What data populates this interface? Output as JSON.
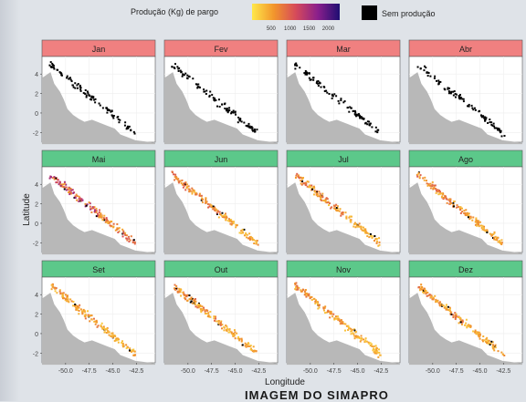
{
  "chart_data": {
    "type": "scatter",
    "layout": "small-multiples map grid",
    "legend": {
      "gradient_title": "Produção (Kg) de pargo",
      "gradient_ticks": [
        "500",
        "1000",
        "1500",
        "2000"
      ],
      "gradient_tick_values": [
        500,
        1000,
        1500,
        2000
      ],
      "gradient_colors": [
        "#ffe84a",
        "#f2952c",
        "#d64a5a",
        "#8a1f8c",
        "#1e0d72"
      ],
      "no_production_label": "Sem produção",
      "no_production_color": "#000000",
      "placement": "top"
    },
    "xlabel": "Longitude",
    "ylabel": "Latitude",
    "xlim": [
      -52.5,
      -40.5
    ],
    "ylim": [
      -3,
      5.8
    ],
    "x_ticks": [
      "-50.0",
      "-47.5",
      "-45.0",
      "-42.5"
    ],
    "x_tick_values": [
      -50.0,
      -47.5,
      -45.0,
      -42.5
    ],
    "y_ticks": [
      "4",
      "2",
      "0",
      "-2"
    ],
    "y_tick_values": [
      4,
      2,
      0,
      -2
    ],
    "strip_colors": {
      "no_production": "#f08080",
      "production": "#5cc88a"
    },
    "panels": [
      {
        "month": "Jan",
        "production": false,
        "mean_kg": 0,
        "no_prod_fraction": 1.0
      },
      {
        "month": "Fev",
        "production": false,
        "mean_kg": 0,
        "no_prod_fraction": 1.0
      },
      {
        "month": "Mar",
        "production": false,
        "mean_kg": 0,
        "no_prod_fraction": 1.0
      },
      {
        "month": "Abr",
        "production": false,
        "mean_kg": 0,
        "no_prod_fraction": 1.0
      },
      {
        "month": "Mai",
        "production": true,
        "mean_kg": 1100,
        "no_prod_fraction": 0.06
      },
      {
        "month": "Jun",
        "production": true,
        "mean_kg": 700,
        "no_prod_fraction": 0.03
      },
      {
        "month": "Jul",
        "production": true,
        "mean_kg": 650,
        "no_prod_fraction": 0.04
      },
      {
        "month": "Ago",
        "production": true,
        "mean_kg": 700,
        "no_prod_fraction": 0.03
      },
      {
        "month": "Set",
        "production": true,
        "mean_kg": 600,
        "no_prod_fraction": 0.04
      },
      {
        "month": "Out",
        "production": true,
        "mean_kg": 650,
        "no_prod_fraction": 0.05
      },
      {
        "month": "Nov",
        "production": true,
        "mean_kg": 600,
        "no_prod_fraction": 0.03
      },
      {
        "month": "Dez",
        "production": true,
        "mean_kg": 650,
        "no_prod_fraction": 0.08
      }
    ],
    "grid": true,
    "panel_background": "#ffffff",
    "land_color": "#b8b8b8"
  },
  "footer_text": "IMAGEM DO SIMAPRO"
}
